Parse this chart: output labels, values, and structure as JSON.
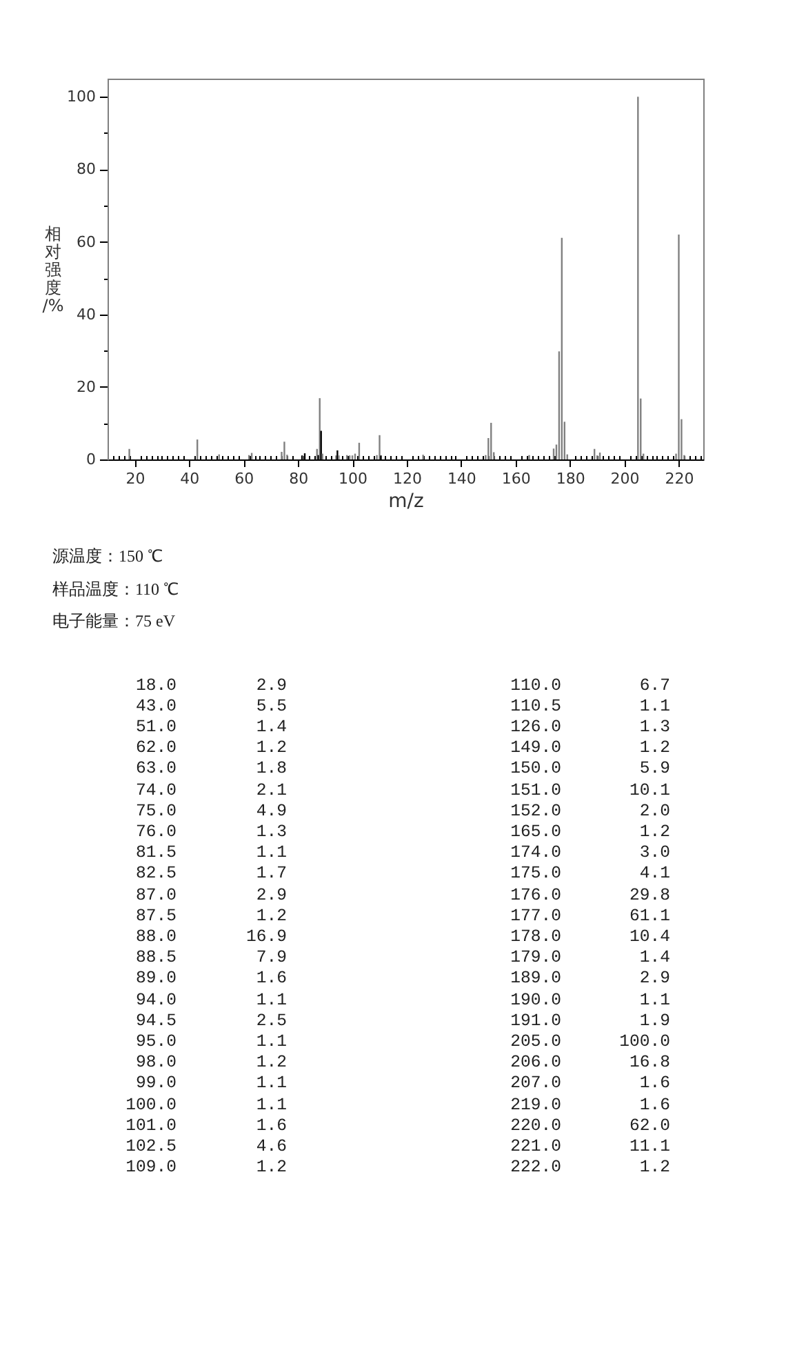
{
  "chart_data": [
    {
      "type": "bar",
      "xlabel": "m/z",
      "ylabel": "相对强度/%",
      "annotations": [
        "源温度：150 ℃",
        "样品温度：110 ℃",
        "电子能量：75 eV"
      ],
      "x": [
        18,
        43,
        51,
        62,
        63,
        74,
        75,
        76,
        81.5,
        82.5,
        87,
        87.5,
        88,
        88.5,
        89,
        94,
        94.5,
        95,
        98,
        99,
        100,
        101,
        102.5,
        109,
        110,
        110.5,
        126,
        149,
        150,
        151,
        152,
        165,
        174,
        175,
        176,
        177,
        178,
        179,
        189,
        190,
        191,
        205,
        206,
        207,
        219,
        220,
        221,
        222
      ],
      "values": [
        2.9,
        5.5,
        1.4,
        1.2,
        1.8,
        2.1,
        4.9,
        1.3,
        1.1,
        1.7,
        2.9,
        1.2,
        16.9,
        7.9,
        1.6,
        1.1,
        2.5,
        1.1,
        1.2,
        1.1,
        1.1,
        1.6,
        4.6,
        1.2,
        6.7,
        1.1,
        1.3,
        1.2,
        5.9,
        10.1,
        2.0,
        1.2,
        3.0,
        4.1,
        29.8,
        61.1,
        10.4,
        1.4,
        2.9,
        1.1,
        1.9,
        100.0,
        16.8,
        1.6,
        1.6,
        62.0,
        11.1,
        1.2
      ],
      "colors": [
        "#808080",
        "#808080",
        "#808080",
        "#808080",
        "#808080",
        "#808080",
        "#808080",
        "#808080",
        "#000000",
        "#000000",
        "#808080",
        "#000000",
        "#808080",
        "#000000",
        "#808080",
        "#808080",
        "#000000",
        "#808080",
        "#808080",
        "#808080",
        "#808080",
        "#808080",
        "#808080",
        "#808080",
        "#808080",
        "#000000",
        "#808080",
        "#808080",
        "#808080",
        "#808080",
        "#808080",
        "#808080",
        "#808080",
        "#808080",
        "#808080",
        "#808080",
        "#808080",
        "#808080",
        "#808080",
        "#808080",
        "#808080",
        "#808080",
        "#808080",
        "#808080",
        "#808080",
        "#808080",
        "#808080",
        "#808080"
      ],
      "xlim": [
        10,
        229
      ],
      "ylim": [
        0,
        105
      ],
      "xticks": [
        {
          "value": 12,
          "label": null
        },
        {
          "value": 14,
          "label": null
        },
        {
          "value": 16,
          "label": null
        },
        {
          "value": 18,
          "label": null
        },
        20,
        {
          "value": 22,
          "label": null
        },
        {
          "value": 24,
          "label": null
        },
        {
          "value": 26,
          "label": null
        },
        {
          "value": 28,
          "label": null
        },
        {
          "value": 30,
          "label": null
        },
        {
          "value": 32,
          "label": null
        },
        {
          "value": 34,
          "label": null
        },
        {
          "value": 36,
          "label": null
        },
        {
          "value": 38,
          "label": null
        },
        40,
        {
          "value": 42,
          "label": null
        },
        {
          "value": 44,
          "label": null
        },
        {
          "value": 46,
          "label": null
        },
        {
          "value": 48,
          "label": null
        },
        {
          "value": 50,
          "label": null
        },
        {
          "value": 52,
          "label": null
        },
        {
          "value": 54,
          "label": null
        },
        {
          "value": 56,
          "label": null
        },
        {
          "value": 58,
          "label": null
        },
        60,
        {
          "value": 62,
          "label": null
        },
        {
          "value": 64,
          "label": null
        },
        {
          "value": 66,
          "label": null
        },
        {
          "value": 68,
          "label": null
        },
        {
          "value": 70,
          "label": null
        },
        {
          "value": 72,
          "label": null
        },
        {
          "value": 74,
          "label": null
        },
        {
          "value": 76,
          "label": null
        },
        {
          "value": 78,
          "label": null
        },
        80,
        {
          "value": 82,
          "label": null
        },
        {
          "value": 84,
          "label": null
        },
        {
          "value": 86,
          "label": null
        },
        {
          "value": 88,
          "label": null
        },
        {
          "value": 90,
          "label": null
        },
        {
          "value": 92,
          "label": null
        },
        {
          "value": 94,
          "label": null
        },
        {
          "value": 96,
          "label": null
        },
        {
          "value": 98,
          "label": null
        },
        100,
        {
          "value": 102,
          "label": null
        },
        {
          "value": 104,
          "label": null
        },
        {
          "value": 106,
          "label": null
        },
        {
          "value": 108,
          "label": null
        },
        {
          "value": 110,
          "label": null
        },
        {
          "value": 112,
          "label": null
        },
        {
          "value": 114,
          "label": null
        },
        {
          "value": 116,
          "label": null
        },
        {
          "value": 118,
          "label": null
        },
        120,
        {
          "value": 122,
          "label": null
        },
        {
          "value": 124,
          "label": null
        },
        {
          "value": 126,
          "label": null
        },
        {
          "value": 128,
          "label": null
        },
        {
          "value": 130,
          "label": null
        },
        {
          "value": 132,
          "label": null
        },
        {
          "value": 134,
          "label": null
        },
        {
          "value": 136,
          "label": null
        },
        {
          "value": 138,
          "label": null
        },
        140,
        {
          "value": 142,
          "label": null
        },
        {
          "value": 144,
          "label": null
        },
        {
          "value": 146,
          "label": null
        },
        {
          "value": 148,
          "label": null
        },
        {
          "value": 150,
          "label": null
        },
        {
          "value": 152,
          "label": null
        },
        {
          "value": 154,
          "label": null
        },
        {
          "value": 156,
          "label": null
        },
        {
          "value": 158,
          "label": null
        },
        160,
        {
          "value": 162,
          "label": null
        },
        {
          "value": 164,
          "label": null
        },
        {
          "value": 166,
          "label": null
        },
        {
          "value": 168,
          "label": null
        },
        {
          "value": 170,
          "label": null
        },
        {
          "value": 172,
          "label": null
        },
        {
          "value": 174,
          "label": null
        },
        {
          "value": 176,
          "label": null
        },
        {
          "value": 178,
          "label": null
        },
        180,
        {
          "value": 182,
          "label": null
        },
        {
          "value": 184,
          "label": null
        },
        {
          "value": 186,
          "label": null
        },
        {
          "value": 188,
          "label": null
        },
        {
          "value": 190,
          "label": null
        },
        {
          "value": 192,
          "label": null
        },
        {
          "value": 194,
          "label": null
        },
        {
          "value": 196,
          "label": null
        },
        {
          "value": 198,
          "label": null
        },
        200,
        {
          "value": 202,
          "label": null
        },
        {
          "value": 204,
          "label": null
        },
        {
          "value": 206,
          "label": null
        },
        {
          "value": 208,
          "label": null
        },
        {
          "value": 210,
          "label": null
        },
        {
          "value": 212,
          "label": null
        },
        {
          "value": 214,
          "label": null
        },
        {
          "value": 216,
          "label": null
        },
        {
          "value": 218,
          "label": null
        },
        220,
        {
          "value": 222,
          "label": null
        },
        {
          "value": 224,
          "label": null
        },
        {
          "value": 226,
          "label": null
        },
        {
          "value": 228,
          "label": null
        }
      ],
      "yticks": [
        0,
        {
          "value": 10,
          "label": null
        },
        20,
        {
          "value": 30,
          "label": null
        },
        40,
        {
          "value": 50,
          "label": null
        },
        60,
        {
          "value": 70,
          "label": null
        },
        80,
        {
          "value": 90,
          "label": null
        },
        100
      ]
    },
    {
      "type": "other",
      "annotations": [
        "18.0",
        "2.9",
        "43.0",
        "5.5",
        "51.0",
        "1.4",
        "62.0",
        "1.2",
        "63.0",
        "1.8",
        "74.0",
        "2.1",
        "75.0",
        "4.9",
        "76.0",
        "1.3",
        "81.5",
        "1.1",
        "82.5",
        "1.7",
        "87.0",
        "2.9",
        "87.5",
        "1.2",
        "88.0",
        "16.9",
        "88.5",
        "7.9",
        "89.0",
        "1.6",
        "94.0",
        "1.1",
        "94.5",
        "2.5",
        "95.0",
        "1.1",
        "98.0",
        "1.2",
        "99.0",
        "1.1",
        "100.0",
        "1.1",
        "101.0",
        "1.6",
        "102.5",
        "4.6",
        "109.0",
        "1.2",
        "110.0",
        "6.7",
        "110.5",
        "1.1",
        "126.0",
        "1.3",
        "149.0",
        "1.2",
        "150.0",
        "5.9",
        "151.0",
        "10.1",
        "152.0",
        "2.0",
        "165.0",
        "1.2",
        "174.0",
        "3.0",
        "175.0",
        "4.1",
        "176.0",
        "29.8",
        "177.0",
        "61.1",
        "178.0",
        "10.4",
        "179.0",
        "1.4",
        "189.0",
        "2.9",
        "190.0",
        "1.1",
        "191.0",
        "1.9",
        "205.0",
        "100.0",
        "206.0",
        "16.8",
        "207.0",
        "1.6",
        "219.0",
        "1.6",
        "220.0",
        "62.0",
        "221.0",
        "11.1",
        "222.0",
        "1.2"
      ]
    }
  ]
}
